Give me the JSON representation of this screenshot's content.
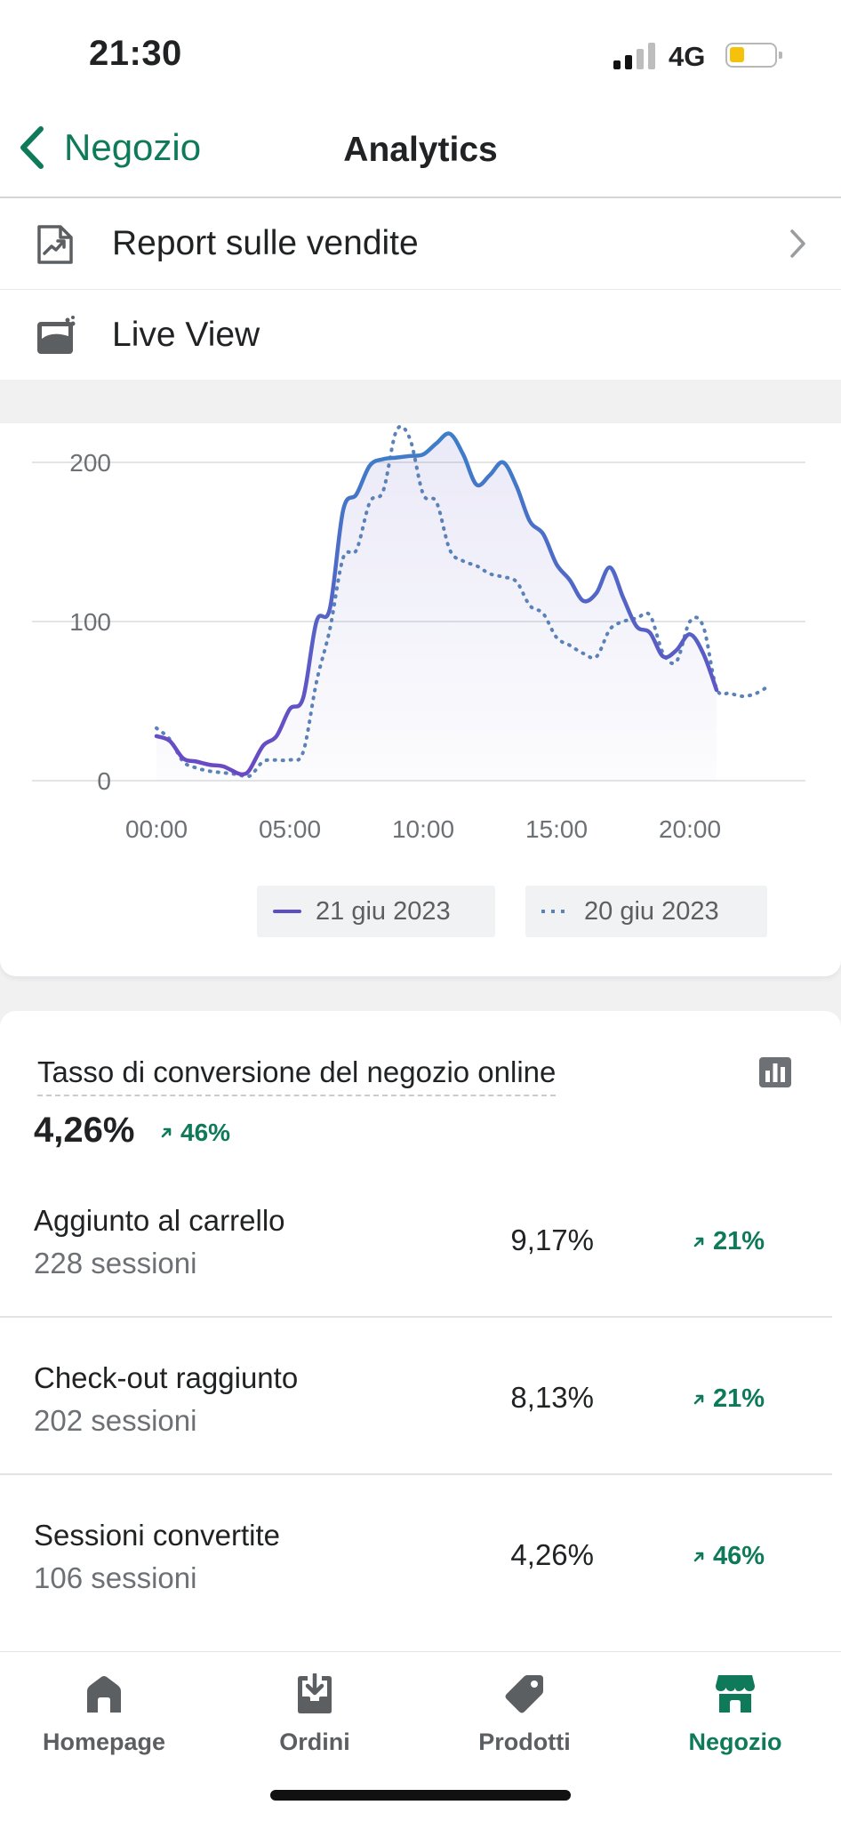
{
  "status_bar": {
    "time": "21:30",
    "network": "4G"
  },
  "nav": {
    "back_label": "Negozio",
    "title": "Analytics"
  },
  "menu": {
    "items": [
      {
        "label": "Report sulle vendite",
        "icon": "sales-report-icon",
        "has_chevron": true
      },
      {
        "label": "Live View",
        "icon": "live-view-icon",
        "has_chevron": false
      }
    ]
  },
  "chart_data": {
    "type": "line",
    "x_ticks": [
      "00:00",
      "05:00",
      "10:00",
      "15:00",
      "20:00"
    ],
    "y_ticks": [
      "200",
      "100",
      "0"
    ],
    "xlim": [
      0,
      24
    ],
    "ylim": [
      0,
      220
    ],
    "grid": true,
    "legend_position": "bottom",
    "series": [
      {
        "name": "21 giu 2023",
        "style": "solid",
        "color": "#5c4fc4",
        "x": [
          0,
          0.5,
          1,
          1.5,
          2,
          2.5,
          3,
          3.25,
          3.5,
          4,
          4.5,
          5,
          5.5,
          6,
          6.5,
          7,
          7.5,
          8,
          8.5,
          9,
          9.5,
          10,
          10.5,
          11,
          11.5,
          12,
          12.5,
          13,
          13.5,
          14,
          14.5,
          15,
          15.5,
          16,
          16.5,
          17,
          17.5,
          18,
          18.5,
          19,
          19.5,
          20,
          20.5,
          21
        ],
        "values": [
          28,
          25,
          14,
          12,
          10,
          9,
          5,
          4,
          7,
          22,
          28,
          45,
          52,
          100,
          108,
          170,
          180,
          198,
          202,
          203,
          204,
          205,
          212,
          218,
          205,
          186,
          192,
          200,
          185,
          163,
          155,
          136,
          126,
          113,
          118,
          134,
          115,
          97,
          93,
          78,
          82,
          92,
          80,
          57
        ]
      },
      {
        "name": "20 giu 2023",
        "style": "dotted",
        "color": "#5b82b7",
        "x": [
          0,
          0.5,
          1,
          1.5,
          2,
          2.5,
          3,
          3.5,
          4,
          4.5,
          5,
          5.5,
          6,
          6.5,
          7,
          7.5,
          8,
          8.5,
          9,
          9.5,
          10,
          10.5,
          11,
          11.5,
          12,
          12.5,
          13,
          13.5,
          14,
          14.5,
          15,
          15.5,
          16,
          16.5,
          17,
          17.5,
          18,
          18.5,
          19,
          19.5,
          20,
          20.5,
          21,
          21.5,
          22,
          22.5,
          23
        ],
        "values": [
          33,
          26,
          12,
          8,
          6,
          5,
          4,
          3,
          12,
          13,
          13,
          18,
          62,
          95,
          140,
          145,
          175,
          182,
          220,
          215,
          180,
          175,
          145,
          138,
          135,
          130,
          128,
          125,
          110,
          105,
          90,
          85,
          80,
          78,
          95,
          100,
          102,
          104,
          80,
          75,
          100,
          97,
          58,
          55,
          53,
          55,
          60
        ]
      }
    ]
  },
  "conversion": {
    "title": "Tasso di conversione del negozio online",
    "value": "4,26%",
    "delta": "46%",
    "rows": [
      {
        "label": "Aggiunto al carrello",
        "sessions": "228 sessioni",
        "value": "9,17%",
        "delta": "21%"
      },
      {
        "label": "Check-out raggiunto",
        "sessions": "202 sessioni",
        "value": "8,13%",
        "delta": "21%"
      },
      {
        "label": "Sessioni convertite",
        "sessions": "106 sessioni",
        "value": "4,26%",
        "delta": "46%"
      }
    ]
  },
  "tabs": [
    {
      "label": "Homepage",
      "icon": "home-icon",
      "active": false
    },
    {
      "label": "Ordini",
      "icon": "orders-icon",
      "active": false
    },
    {
      "label": "Prodotti",
      "icon": "tag-icon",
      "active": false
    },
    {
      "label": "Negozio",
      "icon": "store-icon",
      "active": true
    }
  ],
  "colors": {
    "accent": "#0f7a5a",
    "series_today": "#5c4fc4",
    "series_yesterday": "#5b82b7",
    "battery": "#f4c20d"
  }
}
